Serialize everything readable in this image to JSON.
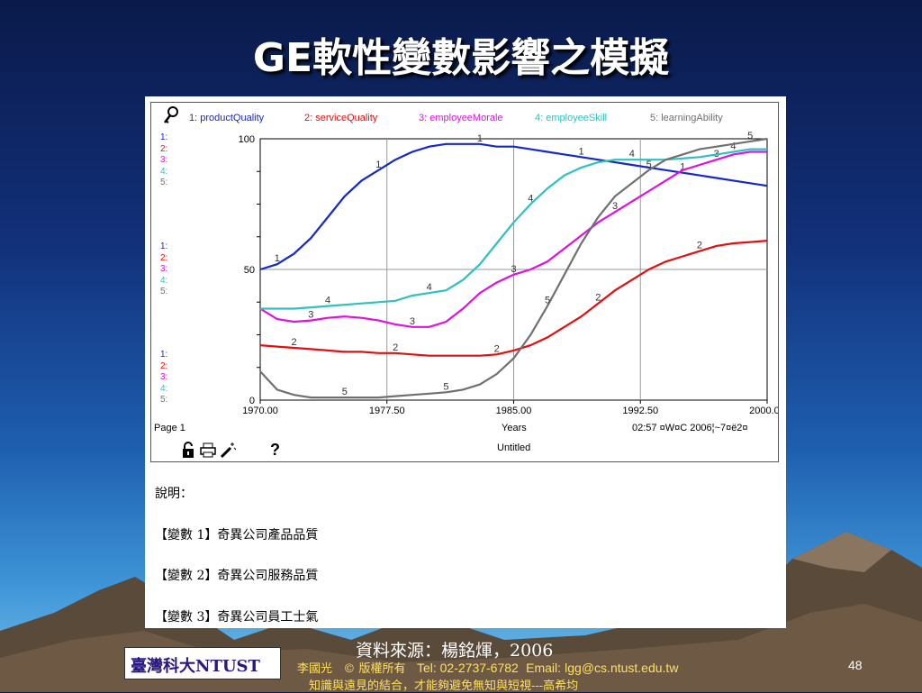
{
  "slide": {
    "title": "GE軟性變數影響之模擬",
    "page_number": "48"
  },
  "colors": {
    "s1": "#1528c8",
    "s2": "#e01010",
    "s3": "#e010e0",
    "s4": "#30c0c0",
    "s5": "#707070"
  },
  "window": {
    "legend": [
      "1: productQuality",
      "2: serviceQuality",
      "3: employeeMorale",
      "4: employeeSkill",
      "5: learningAbility"
    ],
    "mini_scale_labels": [
      "1:",
      "2:",
      "3:",
      "4:",
      "5:"
    ],
    "page_label": "Page 1",
    "x_axis_label": "Years",
    "timestamp": "02:57 ¤W¤C   2006¦~7¤ë2¤",
    "doc_name": "Untitled",
    "icons": [
      "lock-icon",
      "print-icon",
      "magic-wand-icon",
      "help-icon"
    ],
    "help_glyph": "?"
  },
  "description": {
    "heading": "說明：",
    "items": [
      "【變數 1】奇異公司產品品質",
      "【變數 2】奇異公司服務品質",
      "【變數 3】奇異公司員工士氣"
    ]
  },
  "footer": {
    "source": "資料來源：楊銘煇，2006",
    "logo_text": "臺灣科大NTUST",
    "author": "李國光",
    "copyright": "© 版權所有",
    "tel": "Tel: 02-2737-6782",
    "email_label": "Email:",
    "email": "lgg@cs.ntust.edu.tw",
    "motto": "知識與遠見的結合，才能夠避免無知與短視---高希均"
  },
  "chart_data": {
    "type": "line",
    "xlabel": "Years",
    "ylabel": "",
    "xlim": [
      1970,
      2000
    ],
    "ylim": [
      0,
      100
    ],
    "x_ticks": [
      "1970.00",
      "1977.50",
      "1985.00",
      "1992.50",
      "2000.00"
    ],
    "y_ticks": [
      "0",
      "50",
      "100"
    ],
    "grid": true,
    "legend_position": "top",
    "x": [
      1970,
      1971,
      1972,
      1973,
      1974,
      1975,
      1976,
      1977,
      1978,
      1979,
      1980,
      1981,
      1982,
      1983,
      1984,
      1985,
      1986,
      1987,
      1988,
      1989,
      1990,
      1991,
      1992,
      1993,
      1994,
      1995,
      1996,
      1997,
      1998,
      1999,
      2000
    ],
    "series": [
      {
        "name": "1: productQuality",
        "marker": "1",
        "values": [
          50,
          52,
          56,
          62,
          70,
          78,
          84,
          88,
          92,
          95,
          97,
          98,
          98,
          98,
          97,
          97,
          96,
          95,
          94,
          93,
          92,
          91,
          90,
          89,
          88,
          87,
          86,
          85,
          84,
          83,
          82
        ]
      },
      {
        "name": "2: serviceQuality",
        "marker": "2",
        "values": [
          21,
          20.5,
          20,
          19.5,
          19,
          18.5,
          18.5,
          18,
          18,
          17.5,
          17,
          17,
          17,
          17,
          17.5,
          19,
          21,
          24,
          28,
          32,
          37,
          42,
          46,
          50,
          53,
          55,
          57,
          59,
          60,
          60.5,
          61
        ]
      },
      {
        "name": "3: employeeMorale",
        "marker": "3",
        "values": [
          35,
          31,
          30,
          30.5,
          31.5,
          32,
          31.5,
          30.5,
          29,
          28,
          28,
          30,
          35,
          41,
          45,
          48,
          50,
          53,
          58,
          63,
          68,
          72,
          76,
          80,
          84,
          88,
          90,
          92,
          94,
          95,
          95
        ]
      },
      {
        "name": "4: employeeSkill",
        "marker": "4",
        "values": [
          35,
          35,
          35,
          35.5,
          36,
          36.5,
          37,
          37.5,
          38,
          40,
          41,
          42,
          46,
          52,
          60,
          68,
          75,
          81,
          86,
          89,
          91,
          92,
          92,
          92,
          92,
          92.5,
          93,
          94,
          95,
          96,
          96
        ]
      },
      {
        "name": "5: learningAbility",
        "marker": "5",
        "values": [
          11,
          4,
          2,
          1,
          1,
          1,
          1,
          1,
          1.5,
          2,
          2.5,
          3,
          4,
          6,
          10,
          16,
          25,
          36,
          48,
          60,
          70,
          78,
          83,
          88,
          92,
          94,
          96,
          97,
          98,
          99,
          100
        ]
      }
    ]
  }
}
